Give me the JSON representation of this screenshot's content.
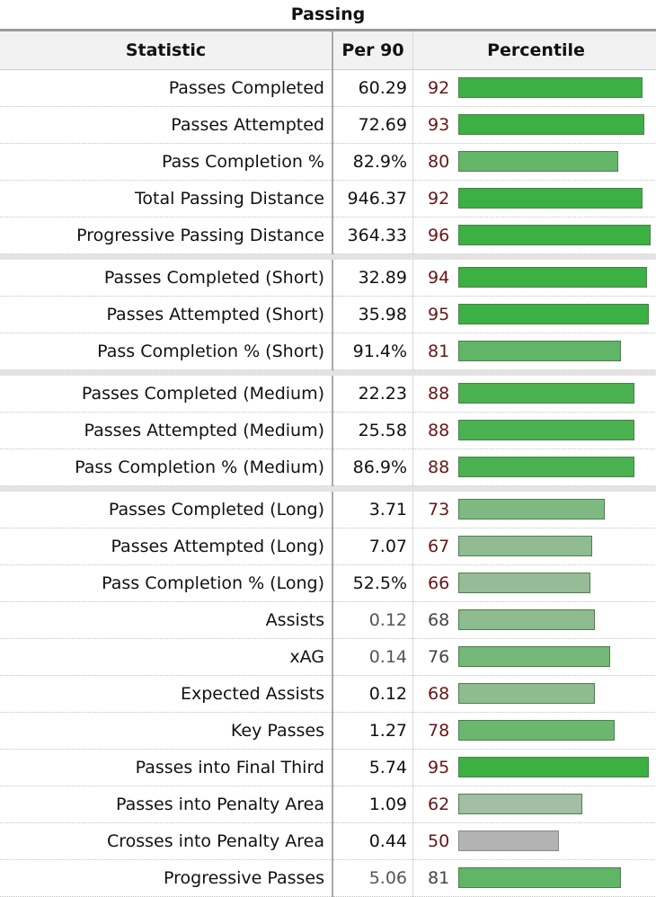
{
  "caption": "Passing",
  "headers": {
    "statistic": "Statistic",
    "per90": "Per 90",
    "percentile": "Percentile"
  },
  "chart_data": {
    "type": "table",
    "title": "Passing",
    "columns": [
      "Statistic",
      "Per 90",
      "Percentile"
    ],
    "percentile_range": [
      0,
      100
    ],
    "groups": [
      [
        {
          "statistic": "Passes Completed",
          "per90": "60.29",
          "percentile": 92
        },
        {
          "statistic": "Passes Attempted",
          "per90": "72.69",
          "percentile": 93
        },
        {
          "statistic": "Pass Completion %",
          "per90": "82.9%",
          "percentile": 80
        },
        {
          "statistic": "Total Passing Distance",
          "per90": "946.37",
          "percentile": 92
        },
        {
          "statistic": "Progressive Passing Distance",
          "per90": "364.33",
          "percentile": 96
        }
      ],
      [
        {
          "statistic": "Passes Completed (Short)",
          "per90": "32.89",
          "percentile": 94
        },
        {
          "statistic": "Passes Attempted (Short)",
          "per90": "35.98",
          "percentile": 95
        },
        {
          "statistic": "Pass Completion % (Short)",
          "per90": "91.4%",
          "percentile": 81
        }
      ],
      [
        {
          "statistic": "Passes Completed (Medium)",
          "per90": "22.23",
          "percentile": 88
        },
        {
          "statistic": "Passes Attempted (Medium)",
          "per90": "25.58",
          "percentile": 88
        },
        {
          "statistic": "Pass Completion % (Medium)",
          "per90": "86.9%",
          "percentile": 88
        }
      ],
      [
        {
          "statistic": "Passes Completed (Long)",
          "per90": "3.71",
          "percentile": 73
        },
        {
          "statistic": "Passes Attempted (Long)",
          "per90": "7.07",
          "percentile": 67
        },
        {
          "statistic": "Pass Completion % (Long)",
          "per90": "52.5%",
          "percentile": 66
        },
        {
          "statistic": "Assists",
          "per90": "0.12",
          "percentile": 68,
          "muted": true
        },
        {
          "statistic": "xAG",
          "per90": "0.14",
          "percentile": 76,
          "muted": true
        },
        {
          "statistic": "Expected Assists",
          "per90": "0.12",
          "percentile": 68
        },
        {
          "statistic": "Key Passes",
          "per90": "1.27",
          "percentile": 78
        },
        {
          "statistic": "Passes into Final Third",
          "per90": "5.74",
          "percentile": 95
        },
        {
          "statistic": "Passes into Penalty Area",
          "per90": "1.09",
          "percentile": 62
        },
        {
          "statistic": "Crosses into Penalty Area",
          "per90": "0.44",
          "percentile": 50
        },
        {
          "statistic": "Progressive Passes",
          "per90": "5.06",
          "percentile": 81,
          "muted": true
        }
      ]
    ]
  },
  "colors": {
    "bar_high": "#3cb043",
    "bar_low": "#a9bfa9",
    "bar_neutral": "#b3b3b3",
    "percentile_text": "#6b1414"
  }
}
